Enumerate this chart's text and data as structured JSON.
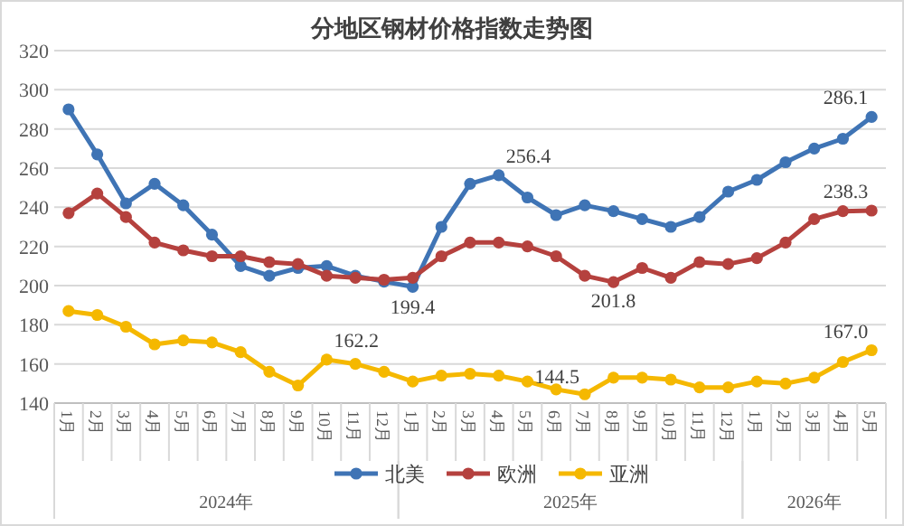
{
  "chart_data": {
    "type": "line",
    "title": "分地区钢材价格指数走势图",
    "categories": [
      "1月",
      "2月",
      "3月",
      "4月",
      "5月",
      "6月",
      "7月",
      "8月",
      "9月",
      "10月",
      "11月",
      "12月",
      "1月",
      "2月",
      "3月",
      "4月",
      "5月",
      "6月",
      "7月",
      "8月",
      "9月",
      "10月",
      "11月",
      "12月",
      "1月",
      "2月",
      "3月",
      "4月",
      "5月"
    ],
    "series": [
      {
        "name": "北美",
        "color": "#3f74b5",
        "values": [
          290,
          267,
          242,
          252,
          241,
          226,
          210,
          205,
          209,
          210,
          205,
          202,
          199.4,
          230,
          252,
          256.4,
          245,
          236,
          241,
          238,
          234,
          230,
          235,
          248,
          254,
          263,
          270,
          275,
          286.1
        ],
        "value_labels": [
          null,
          null,
          null,
          null,
          null,
          null,
          null,
          null,
          null,
          null,
          null,
          null,
          "199.4",
          null,
          null,
          "256.4",
          null,
          null,
          null,
          null,
          null,
          null,
          null,
          null,
          null,
          null,
          null,
          null,
          "286.1"
        ]
      },
      {
        "name": "欧洲",
        "color": "#b5413e",
        "values": [
          237,
          247,
          235,
          222,
          218,
          215,
          215,
          212,
          211,
          205,
          204,
          203,
          204,
          215,
          222,
          222,
          220,
          215,
          205,
          201.8,
          209,
          204,
          212,
          211,
          214,
          222,
          234,
          238,
          238.3
        ],
        "value_labels": [
          null,
          null,
          null,
          null,
          null,
          null,
          null,
          null,
          null,
          null,
          null,
          null,
          null,
          null,
          null,
          null,
          null,
          null,
          null,
          "201.8",
          null,
          null,
          null,
          null,
          null,
          null,
          null,
          null,
          "238.3"
        ]
      },
      {
        "name": "亚洲",
        "color": "#f5b800",
        "values": [
          187,
          185,
          179,
          170,
          172,
          171,
          166,
          156,
          149,
          162.2,
          160,
          156,
          151,
          154,
          155,
          154,
          151,
          147,
          144.5,
          153,
          153,
          152,
          148,
          148,
          151,
          150,
          153,
          161,
          167.0
        ],
        "value_labels": [
          null,
          null,
          null,
          null,
          null,
          null,
          null,
          null,
          null,
          "162.2",
          null,
          null,
          null,
          null,
          null,
          null,
          null,
          null,
          "144.5",
          null,
          null,
          null,
          null,
          null,
          null,
          null,
          null,
          null,
          "167.0"
        ]
      }
    ],
    "ylim": [
      140,
      320
    ],
    "yticks": [
      140,
      160,
      180,
      200,
      220,
      240,
      260,
      280,
      300,
      320
    ],
    "grid": "y",
    "marker": "circle",
    "legend": "bottom",
    "annotations": [
      "2024年",
      "2025年",
      "2026年"
    ]
  }
}
